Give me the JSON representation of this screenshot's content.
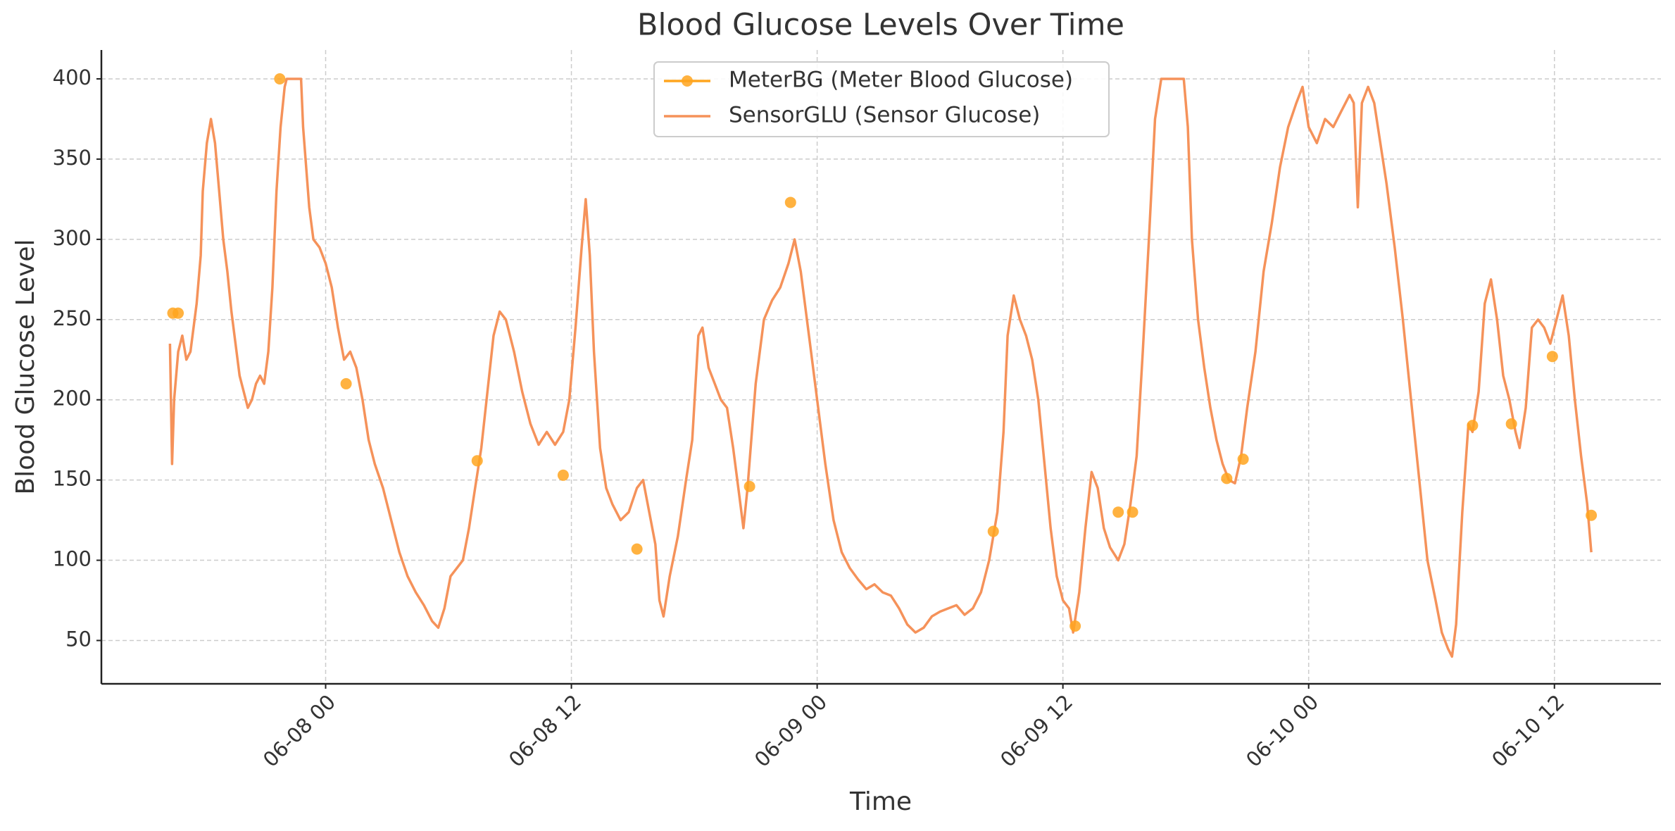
{
  "chart_data": {
    "type": "line",
    "title": "Blood Glucose Levels Over Time",
    "x_label": "Time",
    "y_label": "Blood Glucose Level",
    "xlim": [
      -10.95,
      65.2
    ],
    "ylim": [
      23,
      418
    ],
    "xticks": [
      {
        "value": 0,
        "label": "06-08 00"
      },
      {
        "value": 12,
        "label": "06-08 12"
      },
      {
        "value": 24,
        "label": "06-09 00"
      },
      {
        "value": 36,
        "label": "06-09 12"
      },
      {
        "value": 48,
        "label": "06-10 00"
      },
      {
        "value": 60,
        "label": "06-10 12"
      }
    ],
    "yticks": [
      50,
      100,
      150,
      200,
      250,
      300,
      350,
      400
    ],
    "grid": true,
    "legend": "top",
    "series": [
      {
        "name": "MeterBG (Meter Blood Glucose)",
        "color": "#ffa51f",
        "mode": "markers",
        "x": [
          -7.46,
          -7.2,
          -2.24,
          1.0,
          7.4,
          11.6,
          15.2,
          20.7,
          22.7,
          32.6,
          36.6,
          38.7,
          39.4,
          44.0,
          44.8,
          56.0,
          57.9,
          59.9,
          61.8
        ],
        "values": [
          254,
          254,
          400,
          210,
          162,
          153,
          107,
          146,
          323,
          118,
          59,
          130,
          130,
          151,
          163,
          184,
          185,
          227,
          128
        ]
      },
      {
        "name": "SensorGLU (Sensor Glucose)",
        "color": "#f5925a",
        "mode": "line",
        "x": [
          -7.6,
          -7.5,
          -7.4,
          -7.2,
          -7.0,
          -6.8,
          -6.6,
          -6.3,
          -6.1,
          -6.0,
          -5.8,
          -5.6,
          -5.4,
          -5.2,
          -5.0,
          -4.8,
          -4.6,
          -4.4,
          -4.2,
          -4.0,
          -3.8,
          -3.6,
          -3.4,
          -3.2,
          -3.0,
          -2.8,
          -2.6,
          -2.4,
          -2.2,
          -2.0,
          -1.9,
          -1.2,
          -1.1,
          -0.8,
          -0.6,
          -0.3,
          0,
          0.3,
          0.6,
          0.9,
          1.2,
          1.5,
          1.8,
          2.1,
          2.4,
          2.8,
          3.2,
          3.6,
          4.0,
          4.4,
          4.8,
          5.2,
          5.5,
          5.8,
          6.1,
          6.4,
          6.7,
          7.0,
          7.3,
          7.6,
          7.9,
          8.2,
          8.5,
          8.8,
          9.2,
          9.6,
          10.0,
          10.4,
          10.8,
          11.2,
          11.6,
          11.9,
          12.2,
          12.5,
          12.7,
          12.9,
          13.1,
          13.4,
          13.7,
          14.0,
          14.4,
          14.8,
          15.2,
          15.5,
          15.8,
          16.1,
          16.3,
          16.5,
          16.8,
          17.2,
          17.6,
          17.9,
          18.2,
          18.4,
          18.7,
          19.0,
          19.3,
          19.6,
          19.9,
          20.2,
          20.4,
          20.6,
          21.0,
          21.4,
          21.8,
          22.2,
          22.6,
          22.9,
          23.2,
          23.6,
          24.0,
          24.4,
          24.8,
          25.2,
          25.6,
          26.0,
          26.4,
          26.8,
          27.2,
          27.6,
          28.0,
          28.4,
          28.8,
          29.2,
          29.6,
          30.0,
          30.4,
          30.8,
          31.2,
          31.6,
          32.0,
          32.4,
          32.8,
          33.1,
          33.3,
          33.6,
          33.9,
          34.2,
          34.5,
          34.8,
          35.1,
          35.4,
          35.7,
          36.0,
          36.3,
          36.5,
          36.8,
          37.1,
          37.4,
          37.7,
          38.0,
          38.3,
          38.7,
          39.0,
          39.3,
          39.6,
          39.9,
          40.2,
          40.5,
          40.8,
          41.9,
          42.1,
          42.3,
          42.6,
          42.9,
          43.2,
          43.5,
          43.8,
          44.1,
          44.4,
          44.7,
          45.0,
          45.4,
          45.8,
          46.2,
          46.6,
          47.0,
          47.4,
          47.7,
          48.0,
          48.4,
          48.8,
          49.2,
          49.6,
          50.0,
          50.2,
          50.4,
          50.6,
          50.9,
          51.2,
          51.5,
          51.8,
          52.2,
          52.6,
          53.0,
          53.4,
          53.8,
          54.2,
          54.5,
          54.8,
          55.0,
          55.2,
          55.5,
          55.8,
          56.0,
          56.3,
          56.6,
          56.9,
          57.2,
          57.5,
          57.8,
          58.1,
          58.3,
          58.6,
          58.9,
          59.2,
          59.5,
          59.8,
          60.1,
          60.4,
          60.7,
          61.0,
          61.3,
          61.6,
          61.8
        ],
        "values": [
          235,
          160,
          200,
          230,
          240,
          225,
          230,
          260,
          290,
          330,
          360,
          375,
          360,
          330,
          300,
          280,
          255,
          235,
          215,
          205,
          195,
          200,
          210,
          215,
          210,
          230,
          270,
          330,
          370,
          395,
          400,
          400,
          370,
          320,
          300,
          295,
          285,
          270,
          245,
          225,
          230,
          220,
          200,
          175,
          160,
          145,
          125,
          105,
          90,
          80,
          72,
          62,
          58,
          70,
          90,
          95,
          100,
          120,
          145,
          170,
          205,
          240,
          255,
          250,
          230,
          205,
          185,
          172,
          180,
          172,
          180,
          200,
          245,
          295,
          325,
          290,
          230,
          170,
          145,
          135,
          125,
          130,
          145,
          150,
          130,
          110,
          75,
          65,
          90,
          115,
          150,
          175,
          240,
          245,
          220,
          210,
          200,
          195,
          170,
          140,
          120,
          145,
          210,
          250,
          262,
          270,
          285,
          300,
          280,
          240,
          200,
          160,
          125,
          105,
          95,
          88,
          82,
          85,
          80,
          78,
          70,
          60,
          55,
          58,
          65,
          68,
          70,
          72,
          66,
          70,
          80,
          100,
          130,
          180,
          240,
          265,
          250,
          240,
          225,
          200,
          160,
          120,
          90,
          75,
          70,
          55,
          80,
          120,
          155,
          145,
          120,
          108,
          100,
          110,
          135,
          165,
          230,
          300,
          375,
          400,
          400,
          370,
          300,
          250,
          220,
          195,
          175,
          160,
          150,
          148,
          165,
          195,
          230,
          280,
          310,
          345,
          370,
          385,
          395,
          370,
          360,
          375,
          370,
          380,
          390,
          385,
          320,
          385,
          395,
          385,
          360,
          335,
          295,
          250,
          200,
          150,
          100,
          75,
          55,
          45,
          40,
          60,
          130,
          185,
          180,
          205,
          260,
          275,
          250,
          215,
          200,
          180,
          170,
          195,
          245,
          250,
          245,
          235,
          250,
          265,
          240,
          200,
          165,
          135,
          105
        ]
      }
    ]
  }
}
